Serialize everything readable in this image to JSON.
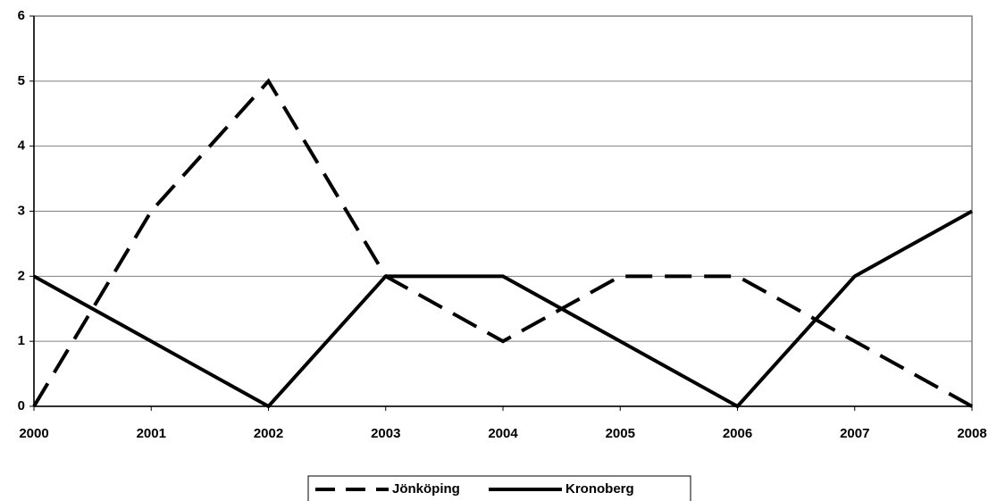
{
  "chart_data": {
    "type": "line",
    "categories": [
      "2000",
      "2001",
      "2002",
      "2003",
      "2004",
      "2005",
      "2006",
      "2007",
      "2008"
    ],
    "series": [
      {
        "name": "Jönköping",
        "color": "#000000",
        "dash": "dashed",
        "values": [
          0,
          3,
          5,
          2,
          1,
          2,
          2,
          1,
          0
        ]
      },
      {
        "name": "Kronoberg",
        "color": "#000000",
        "dash": "solid",
        "values": [
          2,
          1,
          0,
          2,
          2,
          1,
          0,
          2,
          3
        ]
      }
    ],
    "ylim": [
      0,
      6
    ],
    "yticks": [
      0,
      1,
      2,
      3,
      4,
      5,
      6
    ],
    "grid": true,
    "legend": "bottom"
  }
}
